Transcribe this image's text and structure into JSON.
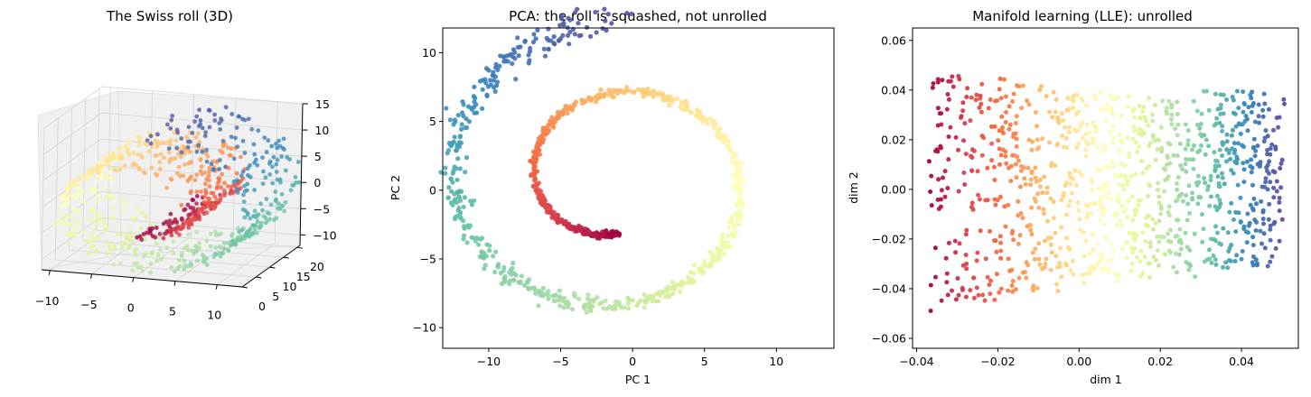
{
  "chart_data": [
    {
      "type": "scatter",
      "projection": "3d",
      "title": "The Swiss roll (3D)",
      "xlabel": "",
      "ylabel": "",
      "zlabel": "",
      "x_ticks": [
        "−10",
        "−5",
        "0",
        "5",
        "10"
      ],
      "y_ticks": [
        "0",
        "5",
        "10",
        "15",
        "20"
      ],
      "z_ticks": [
        "15",
        "10",
        "5",
        "0",
        "−5",
        "−10"
      ],
      "xlim": [
        -11,
        13
      ],
      "ylim": [
        0,
        21
      ],
      "zlim": [
        -12,
        15
      ],
      "colormap": "Spectral",
      "roll": {
        "t_range": [
          4.71,
          14.14
        ],
        "height_range": [
          0,
          21
        ],
        "n_points": 800
      },
      "grid": true
    },
    {
      "type": "scatter",
      "title": "PCA: the roll is squashed, not unrolled",
      "xlabel": "PC 1",
      "ylabel": "PC 2",
      "x_ticks": [
        "−10",
        "−5",
        "0",
        "5",
        "10"
      ],
      "y_ticks": [
        "10",
        "5",
        "0",
        "−5",
        "−10"
      ],
      "xlim": [
        -13.2,
        14.0
      ],
      "ylim": [
        -11.5,
        11.8
      ],
      "colormap": "Spectral",
      "spiral": {
        "t_range": [
          4.71,
          14.14
        ],
        "n_points": 1000
      },
      "grid": false
    },
    {
      "type": "scatter",
      "title": "Manifold learning (LLE): unrolled",
      "xlabel": "dim 1",
      "ylabel": "dim 2",
      "x_ticks": [
        "−0.04",
        "−0.02",
        "0.00",
        "0.02",
        "0.04"
      ],
      "y_ticks": [
        "0.06",
        "0.04",
        "0.02",
        "0.00",
        "−0.02",
        "−0.04",
        "−0.06"
      ],
      "xlim": [
        -0.041,
        0.054
      ],
      "ylim": [
        -0.064,
        0.065
      ],
      "colormap": "Spectral",
      "band": {
        "x_range": [
          -0.037,
          0.05
        ],
        "half_height_left": 0.05,
        "half_height_right": 0.035,
        "n_points": 1000
      },
      "grid": false
    }
  ]
}
